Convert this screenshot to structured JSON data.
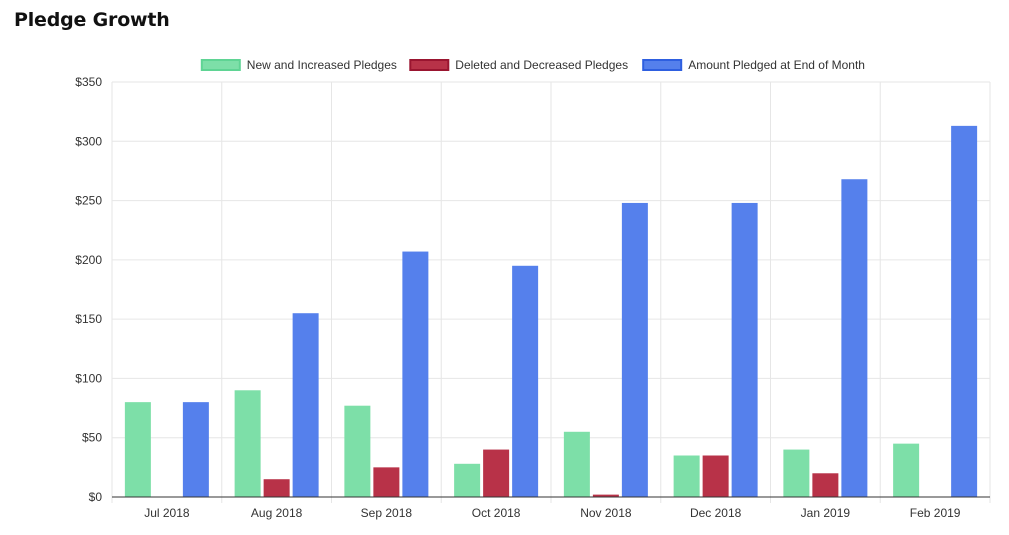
{
  "page": {
    "title": "Pledge Growth"
  },
  "chart_data": {
    "type": "bar",
    "title": "",
    "xlabel": "",
    "ylabel": "",
    "categories": [
      "Jul 2018",
      "Aug 2018",
      "Sep 2018",
      "Oct 2018",
      "Nov 2018",
      "Dec 2018",
      "Jan 2019",
      "Feb 2019"
    ],
    "series": [
      {
        "name": "New and Increased Pledges",
        "color": "#7ddfa8",
        "border": "#5fd494",
        "values": [
          80,
          90,
          77,
          28,
          55,
          35,
          40,
          45
        ]
      },
      {
        "name": "Deleted and Decreased Pledges",
        "color": "#b83248",
        "border": "#9a1530",
        "values": [
          0,
          15,
          25,
          40,
          2,
          35,
          20,
          0
        ]
      },
      {
        "name": "Amount Pledged at End of Month",
        "color": "#5580ec",
        "border": "#2e5fe0",
        "values": [
          80,
          155,
          207,
          195,
          248,
          248,
          268,
          313
        ]
      }
    ],
    "ylim": [
      0,
      350
    ],
    "yticks": [
      0,
      50,
      100,
      150,
      200,
      250,
      300,
      350
    ],
    "ytick_labels": [
      "$0",
      "$50",
      "$100",
      "$150",
      "$200",
      "$250",
      "$300",
      "$350"
    ],
    "grid": true,
    "legend_position": "top-center"
  }
}
